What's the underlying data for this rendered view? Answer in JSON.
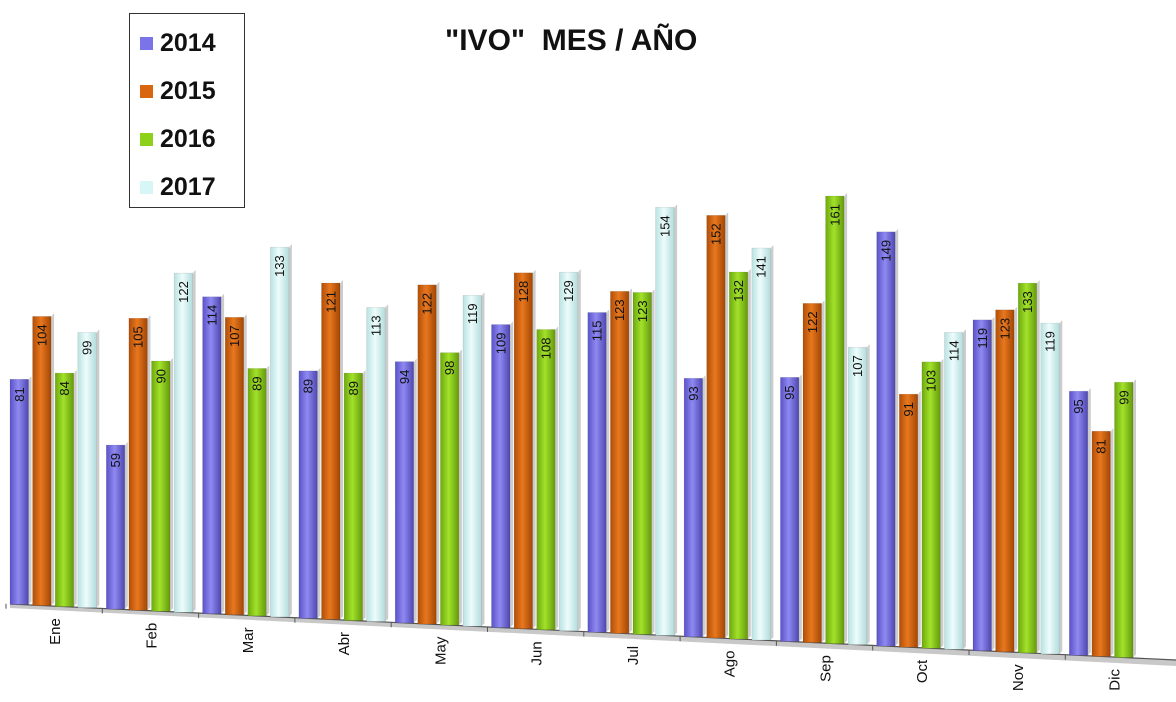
{
  "chart_data": {
    "type": "bar",
    "title": "\"IVO\"  MES / AÑO",
    "categories": [
      "Ene",
      "Feb",
      "Mar",
      "Abr",
      "May",
      "Jun",
      "Jul",
      "Ago",
      "Sep",
      "Oct",
      "Nov",
      "Dic"
    ],
    "series": [
      {
        "name": "2014",
        "color": "#7b74e8",
        "values": [
          81,
          59,
          114,
          89,
          94,
          109,
          115,
          93,
          95,
          149,
          119,
          95
        ]
      },
      {
        "name": "2015",
        "color": "#d9650f",
        "values": [
          104,
          105,
          107,
          121,
          122,
          128,
          123,
          152,
          122,
          91,
          123,
          81
        ]
      },
      {
        "name": "2016",
        "color": "#8ed11a",
        "values": [
          84,
          90,
          89,
          89,
          98,
          108,
          123,
          132,
          161,
          103,
          133,
          99
        ]
      },
      {
        "name": "2017",
        "color": "#d7f6f6",
        "values": [
          99,
          122,
          133,
          113,
          119,
          129,
          154,
          141,
          107,
          114,
          119,
          null
        ]
      }
    ],
    "legend": "top-left",
    "grid": false
  }
}
